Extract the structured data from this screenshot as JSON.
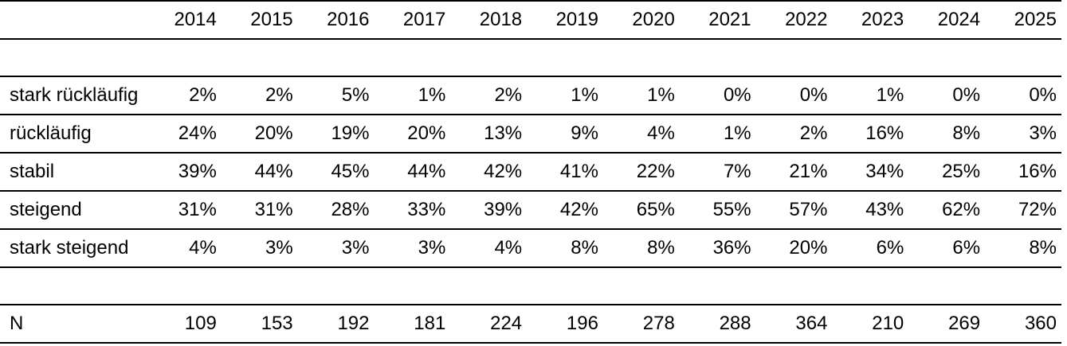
{
  "table": {
    "corner_label": "",
    "years": [
      "2014",
      "2015",
      "2016",
      "2017",
      "2018",
      "2019",
      "2020",
      "2021",
      "2022",
      "2023",
      "2024",
      "2025"
    ],
    "rows": [
      {
        "label": "stark rückläufig",
        "values": [
          "2%",
          "2%",
          "5%",
          "1%",
          "2%",
          "1%",
          "1%",
          "0%",
          "0%",
          "1%",
          "0%",
          "0%"
        ]
      },
      {
        "label": "rückläufig",
        "values": [
          "24%",
          "20%",
          "19%",
          "20%",
          "13%",
          "9%",
          "4%",
          "1%",
          "2%",
          "16%",
          "8%",
          "3%"
        ]
      },
      {
        "label": "stabil",
        "values": [
          "39%",
          "44%",
          "45%",
          "44%",
          "42%",
          "41%",
          "22%",
          "7%",
          "21%",
          "34%",
          "25%",
          "16%"
        ]
      },
      {
        "label": "steigend",
        "values": [
          "31%",
          "31%",
          "28%",
          "33%",
          "39%",
          "42%",
          "65%",
          "55%",
          "57%",
          "43%",
          "62%",
          "72%"
        ]
      },
      {
        "label": "stark steigend",
        "values": [
          "4%",
          "3%",
          "3%",
          "3%",
          "4%",
          "8%",
          "8%",
          "36%",
          "20%",
          "6%",
          "6%",
          "8%"
        ]
      }
    ],
    "n_row": {
      "label": "N",
      "values": [
        "109",
        "153",
        "192",
        "181",
        "224",
        "196",
        "278",
        "288",
        "364",
        "210",
        "269",
        "360"
      ]
    }
  },
  "chart_data": {
    "type": "table",
    "title": "",
    "categories": [
      "2014",
      "2015",
      "2016",
      "2017",
      "2018",
      "2019",
      "2020",
      "2021",
      "2022",
      "2023",
      "2024",
      "2025"
    ],
    "value_unit": "percent",
    "series": [
      {
        "name": "stark rückläufig",
        "values": [
          2,
          2,
          5,
          1,
          2,
          1,
          1,
          0,
          0,
          1,
          0,
          0
        ]
      },
      {
        "name": "rückläufig",
        "values": [
          24,
          20,
          19,
          20,
          13,
          9,
          4,
          1,
          2,
          16,
          8,
          3
        ]
      },
      {
        "name": "stabil",
        "values": [
          39,
          44,
          45,
          44,
          42,
          41,
          22,
          7,
          21,
          34,
          25,
          16
        ]
      },
      {
        "name": "steigend",
        "values": [
          31,
          31,
          28,
          33,
          39,
          42,
          65,
          55,
          57,
          43,
          62,
          72
        ]
      },
      {
        "name": "stark steigend",
        "values": [
          4,
          3,
          3,
          3,
          4,
          8,
          8,
          36,
          20,
          6,
          6,
          8
        ]
      },
      {
        "name": "N",
        "values": [
          109,
          153,
          192,
          181,
          224,
          196,
          278,
          288,
          364,
          210,
          269,
          360
        ]
      }
    ],
    "layout": {
      "grid": "horizontal-rules-only",
      "legend": "none",
      "text_color": "#000000",
      "rule_color": "#000000",
      "background": "#ffffff"
    }
  }
}
